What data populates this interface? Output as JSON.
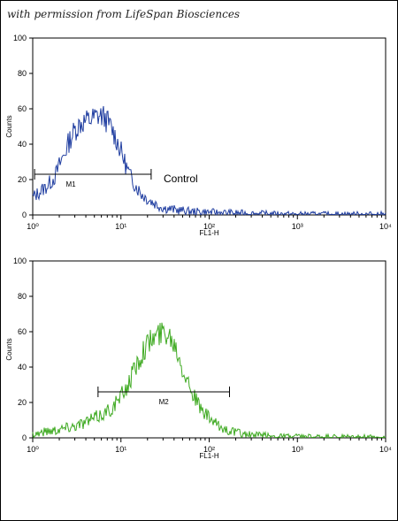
{
  "credit": "with permission from LifeSpan Biosciences",
  "chart_data": [
    {
      "type": "line",
      "title": "",
      "xlabel": "FL1-H",
      "ylabel": "Counts",
      "x_scale": "log",
      "xlim": [
        1,
        10000
      ],
      "ylim": [
        0,
        100
      ],
      "x_ticks": [
        "10⁰",
        "10¹",
        "10²",
        "10³",
        "10⁴"
      ],
      "y_ticks": [
        "0",
        "20",
        "40",
        "60",
        "80",
        "100"
      ],
      "series": [
        {
          "color": "#1f3da0",
          "points": [
            [
              1.0,
              10
            ],
            [
              1.2,
              13
            ],
            [
              1.5,
              17
            ],
            [
              1.8,
              22
            ],
            [
              2.0,
              28
            ],
            [
              2.3,
              35
            ],
            [
              2.6,
              42
            ],
            [
              3.0,
              48
            ],
            [
              3.5,
              52
            ],
            [
              4.0,
              53
            ],
            [
              4.5,
              54
            ],
            [
              5.0,
              55
            ],
            [
              5.5,
              56
            ],
            [
              6.0,
              56
            ],
            [
              6.5,
              55
            ],
            [
              7.0,
              53
            ],
            [
              8.0,
              48
            ],
            [
              9.0,
              42
            ],
            [
              10,
              36
            ],
            [
              11,
              30
            ],
            [
              12,
              25
            ],
            [
              13,
              21
            ],
            [
              15,
              16
            ],
            [
              17,
              12
            ],
            [
              20,
              9
            ],
            [
              25,
              6
            ],
            [
              30,
              4
            ],
            [
              40,
              3
            ],
            [
              60,
              2
            ],
            [
              100,
              1.5
            ],
            [
              200,
              1
            ],
            [
              500,
              0.5
            ],
            [
              1000,
              0.3
            ],
            [
              10000,
              0.3
            ]
          ]
        }
      ],
      "gate": {
        "label": "M1",
        "x_start": 1.05,
        "x_end": 22,
        "y": 23
      },
      "annotations": [
        {
          "text": "Control"
        }
      ]
    },
    {
      "type": "line",
      "title": "",
      "xlabel": "FL1-H",
      "ylabel": "Counts",
      "x_scale": "log",
      "xlim": [
        1,
        10000
      ],
      "ylim": [
        0,
        100
      ],
      "x_ticks": [
        "10⁰",
        "10¹",
        "10²",
        "10³",
        "10⁴"
      ],
      "y_ticks": [
        "0",
        "20",
        "40",
        "60",
        "80",
        "100"
      ],
      "series": [
        {
          "color": "#3faa22",
          "points": [
            [
              1.0,
              2
            ],
            [
              1.5,
              4
            ],
            [
              2.0,
              5
            ],
            [
              3.0,
              7
            ],
            [
              4.0,
              9
            ],
            [
              5.0,
              11
            ],
            [
              6.0,
              13
            ],
            [
              7.0,
              15
            ],
            [
              8.0,
              17
            ],
            [
              10,
              23
            ],
            [
              12,
              30
            ],
            [
              14,
              38
            ],
            [
              16,
              44
            ],
            [
              18,
              50
            ],
            [
              20,
              53
            ],
            [
              23,
              56
            ],
            [
              26,
              58
            ],
            [
              30,
              60
            ],
            [
              33,
              60
            ],
            [
              36,
              58
            ],
            [
              40,
              54
            ],
            [
              45,
              48
            ],
            [
              50,
              40
            ],
            [
              60,
              30
            ],
            [
              70,
              22
            ],
            [
              80,
              16
            ],
            [
              100,
              11
            ],
            [
              130,
              6
            ],
            [
              200,
              3
            ],
            [
              300,
              1.5
            ],
            [
              500,
              1
            ],
            [
              1000,
              0.5
            ],
            [
              2000,
              0.3
            ],
            [
              10000,
              0.2
            ]
          ]
        }
      ],
      "gate": {
        "label": "M2",
        "x_start": 5.5,
        "x_end": 170,
        "y": 26
      }
    }
  ]
}
